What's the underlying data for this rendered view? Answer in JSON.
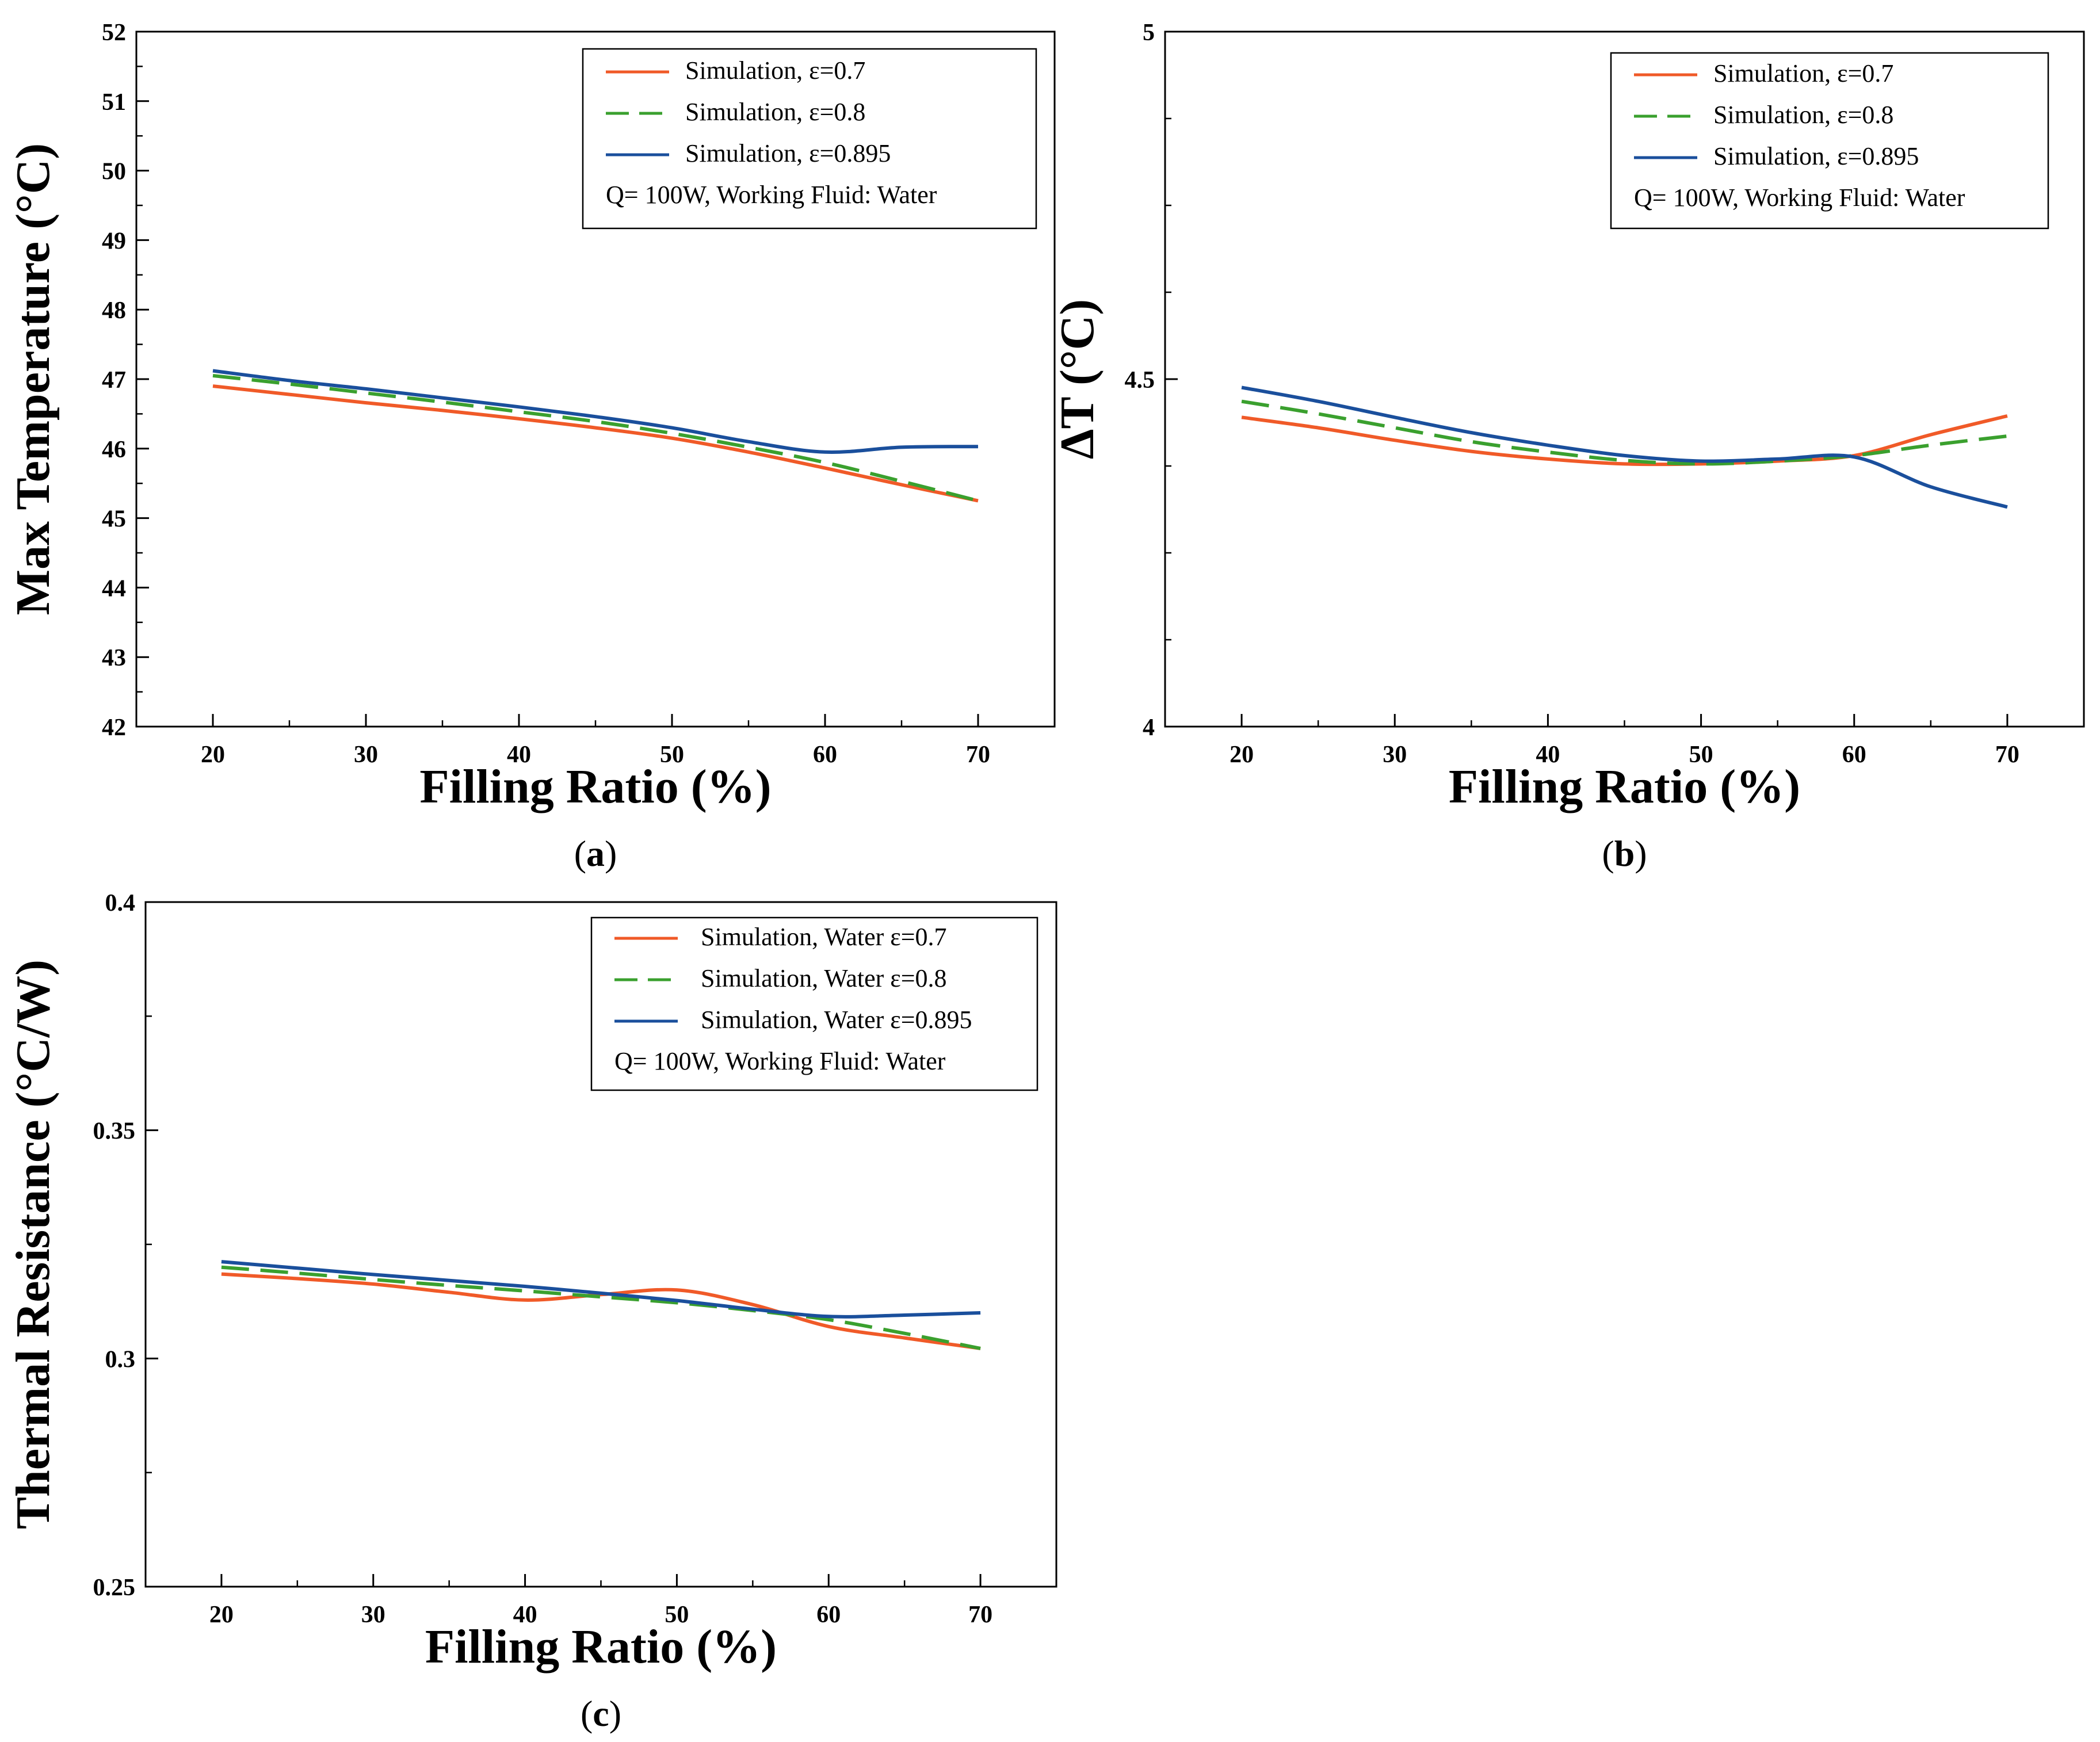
{
  "colors": {
    "eps07": "#f05a28",
    "eps08": "#3aa02e",
    "eps0895": "#1a4f9c"
  },
  "chart_data": [
    {
      "id": "a",
      "type": "line",
      "panel_label": "a",
      "xlabel": "Filling Ratio (%)",
      "ylabel": "Max Temperature (°C)",
      "xlim": [
        15,
        75
      ],
      "ylim": [
        42,
        52
      ],
      "xticks": [
        "20",
        "30",
        "40",
        "50",
        "60",
        "70"
      ],
      "yticks": [
        "42",
        "43",
        "44",
        "45",
        "46",
        "47",
        "48",
        "49",
        "50",
        "51",
        "52"
      ],
      "legend": {
        "position": "top-right",
        "entries": [
          "Simulation, ε=0.7",
          "Simulation, ε=0.8",
          "Simulation, ε=0.895"
        ],
        "note": "Q= 100W,  Working Fluid: Water"
      },
      "series": [
        {
          "name": "Simulation, ε=0.7",
          "style": "solid",
          "x": [
            20,
            25,
            30,
            35,
            40,
            45,
            50,
            55,
            60,
            65,
            70
          ],
          "y": [
            46.9,
            46.78,
            46.66,
            46.55,
            46.43,
            46.3,
            46.15,
            45.95,
            45.72,
            45.48,
            45.25
          ]
        },
        {
          "name": "Simulation, ε=0.8",
          "style": "dashed",
          "x": [
            20,
            25,
            30,
            35,
            40,
            45,
            50,
            55,
            60,
            65,
            70
          ],
          "y": [
            47.05,
            46.93,
            46.8,
            46.67,
            46.53,
            46.39,
            46.22,
            46.02,
            45.8,
            45.53,
            45.25
          ]
        },
        {
          "name": "Simulation, ε=0.895",
          "style": "solid",
          "x": [
            20,
            25,
            30,
            35,
            40,
            45,
            50,
            55,
            60,
            65,
            70
          ],
          "y": [
            47.12,
            46.98,
            46.86,
            46.73,
            46.6,
            46.46,
            46.3,
            46.1,
            45.95,
            46.02,
            46.03
          ]
        }
      ]
    },
    {
      "id": "b",
      "type": "line",
      "panel_label": "b",
      "xlabel": "Filling Ratio (%)",
      "ylabel": "ΔT (°C)",
      "xlim": [
        15,
        75
      ],
      "ylim": [
        4,
        5
      ],
      "xticks": [
        "20",
        "30",
        "40",
        "50",
        "60",
        "70"
      ],
      "yticks": [
        "4",
        "4.5",
        "5"
      ],
      "legend": {
        "position": "top-right",
        "entries": [
          "Simulation, ε=0.7",
          "Simulation, ε=0.8",
          "Simulation, ε=0.895"
        ],
        "note": "Q= 100W,  Working Fluid: Water"
      },
      "series": [
        {
          "name": "Simulation, ε=0.7",
          "style": "solid",
          "x": [
            20,
            25,
            30,
            35,
            40,
            45,
            50,
            55,
            60,
            65,
            70
          ],
          "y": [
            4.445,
            4.43,
            4.412,
            4.396,
            4.385,
            4.378,
            4.378,
            4.382,
            4.39,
            4.42,
            4.447
          ]
        },
        {
          "name": "Simulation, ε=0.8",
          "style": "dashed",
          "x": [
            20,
            25,
            30,
            35,
            40,
            45,
            50,
            55,
            60,
            65,
            70
          ],
          "y": [
            4.468,
            4.45,
            4.43,
            4.41,
            4.395,
            4.383,
            4.378,
            4.382,
            4.39,
            4.405,
            4.418
          ]
        },
        {
          "name": "Simulation, ε=0.895",
          "style": "solid",
          "x": [
            20,
            25,
            30,
            35,
            40,
            45,
            50,
            55,
            60,
            65,
            70
          ],
          "y": [
            4.488,
            4.468,
            4.445,
            4.423,
            4.405,
            4.39,
            4.382,
            4.385,
            4.388,
            4.345,
            4.316
          ]
        }
      ]
    },
    {
      "id": "c",
      "type": "line",
      "panel_label": "c",
      "xlabel": "Filling Ratio (%)",
      "ylabel": "Thermal Resistance (°C/W)",
      "xlim": [
        15,
        75
      ],
      "ylim": [
        0.25,
        0.4
      ],
      "xticks": [
        "20",
        "30",
        "40",
        "50",
        "60",
        "70"
      ],
      "yticks": [
        "0.25",
        "0.3",
        "0.35",
        "0.4"
      ],
      "legend": {
        "position": "top-right",
        "entries": [
          "Simulation, Water ε=0.7",
          "Simulation, Water ε=0.8",
          "Simulation, Water ε=0.895"
        ],
        "note": "Q= 100W,  Working Fluid: Water"
      },
      "series": [
        {
          "name": "Simulation, Water ε=0.7",
          "style": "solid",
          "x": [
            20,
            25,
            30,
            35,
            40,
            45,
            50,
            55,
            60,
            65,
            70
          ],
          "y": [
            0.3185,
            0.3175,
            0.3163,
            0.3145,
            0.3128,
            0.314,
            0.315,
            0.3118,
            0.307,
            0.3045,
            0.3022
          ]
        },
        {
          "name": "Simulation, Water ε=0.8",
          "style": "dashed",
          "x": [
            20,
            25,
            30,
            35,
            40,
            45,
            50,
            55,
            60,
            65,
            70
          ],
          "y": [
            0.32,
            0.3187,
            0.3173,
            0.316,
            0.3148,
            0.3135,
            0.3122,
            0.3105,
            0.3085,
            0.3055,
            0.3022
          ]
        },
        {
          "name": "Simulation, Water ε=0.895",
          "style": "solid",
          "x": [
            20,
            25,
            30,
            35,
            40,
            45,
            50,
            55,
            60,
            65,
            70
          ],
          "y": [
            0.3212,
            0.3198,
            0.3184,
            0.3171,
            0.3158,
            0.3143,
            0.3127,
            0.3108,
            0.3092,
            0.3095,
            0.31
          ]
        }
      ]
    }
  ]
}
